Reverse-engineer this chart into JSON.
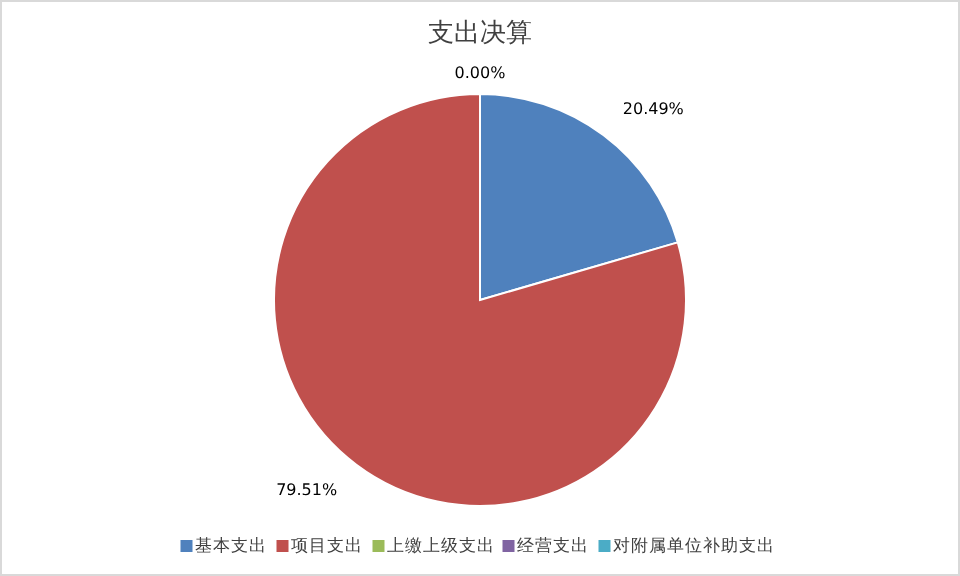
{
  "chart_data": {
    "type": "pie",
    "title": "支出决算",
    "categories": [
      "基本支出",
      "项目支出",
      "上缴上级支出",
      "经营支出",
      "对附属单位补助支出"
    ],
    "values": [
      20.49,
      79.51,
      0,
      0,
      0
    ],
    "value_labels": [
      "20.49%",
      "79.51%",
      "0.00%",
      null,
      null
    ],
    "colors": [
      "#4f81bd",
      "#c0504d",
      "#9bbb59",
      "#8064a2",
      "#4bacc6"
    ],
    "legend": "bottom"
  }
}
